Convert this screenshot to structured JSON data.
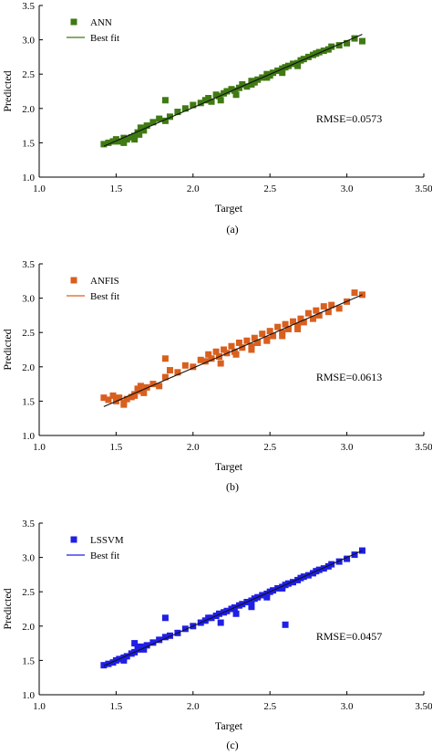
{
  "chart_data": [
    {
      "type": "scatter",
      "panel": "(a)",
      "xlabel": "Target",
      "ylabel": "Predicted",
      "xlim": [
        1.0,
        3.5
      ],
      "ylim": [
        1.0,
        3.5
      ],
      "xticks": [
        "1.0",
        "1.5",
        "2.0",
        "2.5",
        "3.0",
        "3.50"
      ],
      "yticks": [
        "1.0",
        "1.5",
        "2.0",
        "2.5",
        "3.0",
        "3.5"
      ],
      "annotation": "RMSE=0.0573",
      "legend_position": "top-left",
      "color": "#3f7a12",
      "series": [
        {
          "name": "ANN",
          "kind": "points",
          "x": [
            1.42,
            1.45,
            1.48,
            1.5,
            1.52,
            1.55,
            1.57,
            1.6,
            1.62,
            1.64,
            1.66,
            1.68,
            1.7,
            1.74,
            1.78,
            1.82,
            1.82,
            1.85,
            1.9,
            1.95,
            2.0,
            2.05,
            2.08,
            2.1,
            2.12,
            2.15,
            2.17,
            2.2,
            2.22,
            2.25,
            2.27,
            2.3,
            2.32,
            2.35,
            2.38,
            2.4,
            2.42,
            2.45,
            2.48,
            2.5,
            2.52,
            2.55,
            2.58,
            2.6,
            2.62,
            2.65,
            2.68,
            2.7,
            2.72,
            2.75,
            2.78,
            2.8,
            2.82,
            2.85,
            2.88,
            2.9,
            2.95,
            3.0,
            3.05,
            3.1,
            1.62,
            1.65,
            1.55,
            2.18,
            2.28,
            2.38,
            2.48,
            2.58,
            2.68
          ],
          "y": [
            1.48,
            1.5,
            1.52,
            1.55,
            1.52,
            1.57,
            1.55,
            1.58,
            1.6,
            1.65,
            1.72,
            1.68,
            1.75,
            1.8,
            1.85,
            2.12,
            1.82,
            1.88,
            1.95,
            2.0,
            2.05,
            2.08,
            2.12,
            2.15,
            2.1,
            2.2,
            2.18,
            2.22,
            2.25,
            2.28,
            2.26,
            2.3,
            2.35,
            2.32,
            2.4,
            2.38,
            2.42,
            2.45,
            2.5,
            2.48,
            2.52,
            2.55,
            2.58,
            2.6,
            2.62,
            2.65,
            2.66,
            2.7,
            2.72,
            2.75,
            2.78,
            2.8,
            2.82,
            2.84,
            2.86,
            2.9,
            2.92,
            2.95,
            3.02,
            2.98,
            1.55,
            1.62,
            1.5,
            2.12,
            2.2,
            2.35,
            2.45,
            2.52,
            2.62
          ]
        },
        {
          "name": "Best fit",
          "kind": "line",
          "x": [
            1.42,
            3.1
          ],
          "y": [
            1.45,
            3.08
          ]
        }
      ]
    },
    {
      "type": "scatter",
      "panel": "(b)",
      "xlabel": "Target",
      "ylabel": "Predicted",
      "xlim": [
        1.0,
        3.5
      ],
      "ylim": [
        1.0,
        3.5
      ],
      "xticks": [
        "1.0",
        "1.5",
        "2.0",
        "2.5",
        "3.0",
        "3.50"
      ],
      "yticks": [
        "1.0",
        "1.5",
        "2.0",
        "2.5",
        "3.0",
        "3.5"
      ],
      "annotation": "RMSE=0.0613",
      "legend_position": "top-left",
      "color": "#d95f1e",
      "series": [
        {
          "name": "ANFIS",
          "kind": "points",
          "x": [
            1.42,
            1.45,
            1.48,
            1.5,
            1.52,
            1.55,
            1.57,
            1.6,
            1.62,
            1.64,
            1.66,
            1.68,
            1.7,
            1.74,
            1.78,
            1.82,
            1.82,
            1.85,
            1.9,
            1.95,
            2.0,
            2.05,
            2.08,
            2.1,
            2.12,
            2.15,
            2.17,
            2.2,
            2.22,
            2.25,
            2.27,
            2.3,
            2.32,
            2.35,
            2.38,
            2.4,
            2.42,
            2.45,
            2.48,
            2.5,
            2.52,
            2.55,
            2.58,
            2.6,
            2.62,
            2.65,
            2.68,
            2.7,
            2.72,
            2.75,
            2.78,
            2.8,
            2.82,
            2.85,
            2.88,
            2.9,
            2.95,
            3.0,
            3.05,
            3.1,
            1.62,
            1.65,
            1.55,
            2.18,
            2.28,
            2.38,
            2.48,
            2.58,
            2.68
          ],
          "y": [
            1.55,
            1.52,
            1.58,
            1.5,
            1.55,
            1.48,
            1.53,
            1.56,
            1.6,
            1.68,
            1.72,
            1.62,
            1.7,
            1.75,
            1.72,
            2.12,
            1.85,
            1.95,
            1.92,
            2.02,
            2.0,
            2.1,
            2.08,
            2.18,
            2.12,
            2.22,
            2.15,
            2.25,
            2.2,
            2.3,
            2.22,
            2.35,
            2.28,
            2.38,
            2.3,
            2.42,
            2.35,
            2.48,
            2.4,
            2.52,
            2.45,
            2.58,
            2.5,
            2.62,
            2.55,
            2.66,
            2.6,
            2.7,
            2.65,
            2.78,
            2.7,
            2.82,
            2.75,
            2.88,
            2.8,
            2.9,
            2.85,
            2.95,
            3.08,
            3.05,
            1.58,
            1.65,
            1.45,
            2.05,
            2.18,
            2.25,
            2.38,
            2.45,
            2.55
          ]
        },
        {
          "name": "Best fit",
          "kind": "line",
          "x": [
            1.42,
            3.1
          ],
          "y": [
            1.42,
            3.05
          ]
        }
      ]
    },
    {
      "type": "scatter",
      "panel": "(c)",
      "xlabel": "Target",
      "ylabel": "Predicted",
      "xlim": [
        1.0,
        3.5
      ],
      "ylim": [
        1.0,
        3.5
      ],
      "xticks": [
        "1.0",
        "1.5",
        "2.0",
        "2.5",
        "3.0",
        "3.50"
      ],
      "yticks": [
        "1.0",
        "1.5",
        "2.0",
        "2.5",
        "3.0",
        "3.5"
      ],
      "annotation": "RMSE=0.0457",
      "legend_position": "top-left",
      "color": "#1f1fe6",
      "series": [
        {
          "name": "LSSVM",
          "kind": "points",
          "x": [
            1.42,
            1.45,
            1.48,
            1.5,
            1.52,
            1.55,
            1.57,
            1.6,
            1.62,
            1.64,
            1.66,
            1.68,
            1.7,
            1.74,
            1.78,
            1.82,
            1.82,
            1.85,
            1.9,
            1.95,
            2.0,
            2.05,
            2.08,
            2.1,
            2.12,
            2.15,
            2.17,
            2.2,
            2.22,
            2.25,
            2.27,
            2.3,
            2.32,
            2.35,
            2.38,
            2.4,
            2.42,
            2.45,
            2.48,
            2.5,
            2.52,
            2.55,
            2.58,
            2.6,
            2.62,
            2.65,
            2.68,
            2.7,
            2.72,
            2.75,
            2.78,
            2.8,
            2.82,
            2.85,
            2.88,
            2.9,
            2.95,
            3.0,
            3.05,
            3.1,
            1.62,
            1.65,
            1.55,
            2.18,
            2.28,
            2.38,
            2.48,
            2.58,
            2.6
          ],
          "y": [
            1.43,
            1.45,
            1.47,
            1.5,
            1.52,
            1.54,
            1.56,
            1.6,
            1.62,
            1.66,
            1.7,
            1.66,
            1.72,
            1.76,
            1.8,
            2.12,
            1.84,
            1.86,
            1.9,
            1.96,
            2.0,
            2.05,
            2.08,
            2.12,
            2.12,
            2.15,
            2.18,
            2.2,
            2.22,
            2.25,
            2.27,
            2.3,
            2.32,
            2.35,
            2.37,
            2.4,
            2.42,
            2.45,
            2.47,
            2.5,
            2.52,
            2.55,
            2.57,
            2.6,
            2.62,
            2.64,
            2.67,
            2.7,
            2.72,
            2.74,
            2.77,
            2.8,
            2.82,
            2.84,
            2.87,
            2.9,
            2.94,
            2.98,
            3.04,
            3.1,
            1.75,
            1.68,
            1.5,
            2.05,
            2.18,
            2.28,
            2.42,
            2.55,
            2.02
          ]
        },
        {
          "name": "Best fit",
          "kind": "line",
          "x": [
            1.42,
            3.1
          ],
          "y": [
            1.42,
            3.1
          ]
        }
      ]
    }
  ],
  "captions": [
    "(a)",
    "(b)",
    "(c)"
  ]
}
